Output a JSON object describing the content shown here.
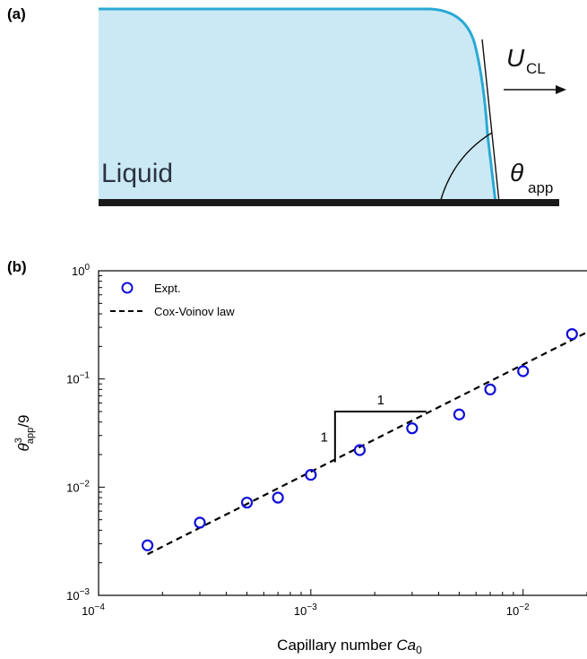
{
  "panel_a": {
    "label": "(a)",
    "liquid_label": "Liquid",
    "velocity_label": "U",
    "velocity_subscript": "CL",
    "angle_symbol": "θ",
    "angle_subscript": "app",
    "colors": {
      "liquid_fill": "#cbe9f5",
      "liquid_edge": "#2aa9d4",
      "substrate": "#1a1a1a"
    }
  },
  "panel_b": {
    "label": "(b)",
    "slope_run_label": "1",
    "slope_rise_label": "1"
  },
  "chart_data": {
    "type": "scatter",
    "xlabel_prefix": "Capillary number ",
    "xlabel_italic": "Ca",
    "xlabel_subscript": "0",
    "ylabel_theta": "θ",
    "ylabel_sup": "3",
    "ylabel_sub": "app",
    "ylabel_suffix": "/9",
    "x_scale": "log",
    "y_scale": "log",
    "xlim": [
      0.0001,
      0.02
    ],
    "ylim": [
      0.001,
      1
    ],
    "x_ticks": [
      {
        "value": 0.0001,
        "base": "10",
        "exp": "−4"
      },
      {
        "value": 0.001,
        "base": "10",
        "exp": "−3"
      },
      {
        "value": 0.01,
        "base": "10",
        "exp": "−2"
      }
    ],
    "y_ticks": [
      {
        "value": 0.001,
        "base": "10",
        "exp": "−3"
      },
      {
        "value": 0.01,
        "base": "10",
        "exp": "−2"
      },
      {
        "value": 0.1,
        "base": "10",
        "exp": "−1"
      },
      {
        "value": 1,
        "base": "10",
        "exp": "0"
      }
    ],
    "legend_position": "top-left",
    "series": [
      {
        "name": "Expt.",
        "kind": "scatter",
        "marker": "open-circle",
        "color": "#1010d8",
        "points": [
          {
            "x": 0.00017,
            "y": 0.0029
          },
          {
            "x": 0.0003,
            "y": 0.0047
          },
          {
            "x": 0.0005,
            "y": 0.0072
          },
          {
            "x": 0.0007,
            "y": 0.008
          },
          {
            "x": 0.001,
            "y": 0.013
          },
          {
            "x": 0.0017,
            "y": 0.022
          },
          {
            "x": 0.003,
            "y": 0.035
          },
          {
            "x": 0.005,
            "y": 0.047
          },
          {
            "x": 0.007,
            "y": 0.08
          },
          {
            "x": 0.01,
            "y": 0.118
          },
          {
            "x": 0.017,
            "y": 0.26
          }
        ]
      },
      {
        "name": "Cox-Voinov law",
        "kind": "line",
        "style": "dashed",
        "color": "#000000",
        "points": [
          {
            "x": 0.00017,
            "y": 0.0024
          },
          {
            "x": 0.02,
            "y": 0.27
          }
        ]
      }
    ],
    "slope_triangle": {
      "x_start": 0.0013,
      "x_end": 0.0035,
      "y_low": 0.017,
      "y_high": 0.05
    }
  }
}
